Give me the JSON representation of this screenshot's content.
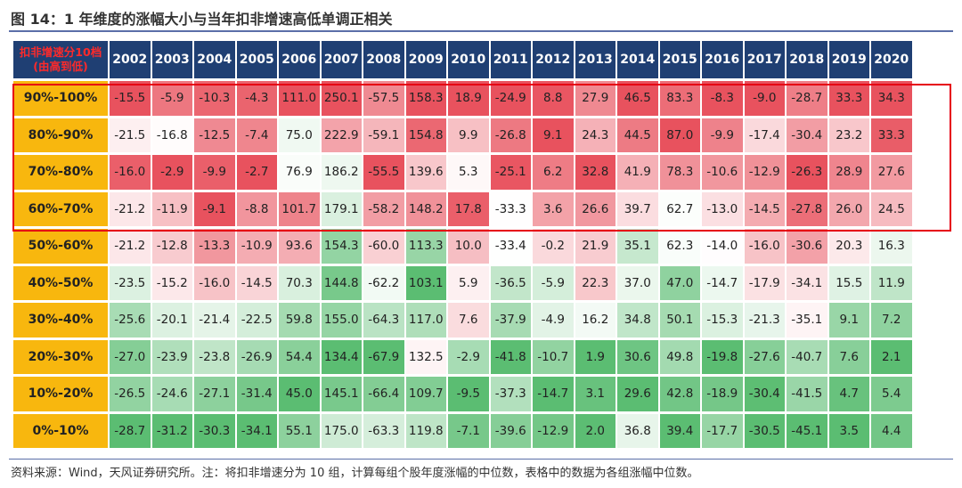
{
  "title": "图 14：1 年维度的涨幅大小与当年扣非增速高低单调正相关",
  "source": "资料来源：Wind，天风证券研究所。注：将扣非增速分为 10 组，计算每组个股年度涨幅的中位数，表格中的数据为各组涨幅中位数。",
  "header": {
    "corner_line1": "扣非增速分10档",
    "corner_line2": "(由高到低)"
  },
  "colors": {
    "header_bg": "#1f3f73",
    "corner_text": "#ff2a2a",
    "row_label_bg": "#f8b70e",
    "highlight_border": "#e60012",
    "scale_high": "#e8525e",
    "scale_mid": "#ffffff",
    "scale_low": "#5bbd72"
  },
  "chart_data": {
    "type": "heatmap",
    "title": "图 14：1 年维度的涨幅大小与当年扣非增速高低单调正相关",
    "x": [
      "2002",
      "2003",
      "2004",
      "2005",
      "2006",
      "2007",
      "2008",
      "2009",
      "2010",
      "2011",
      "2012",
      "2013",
      "2014",
      "2015",
      "2016",
      "2017",
      "2018",
      "2019",
      "2020"
    ],
    "y": [
      "90%-100%",
      "80%-90%",
      "70%-80%",
      "60%-70%",
      "50%-60%",
      "40%-50%",
      "30%-40%",
      "20%-30%",
      "10%-20%",
      "0%-10%"
    ],
    "values": [
      [
        "-15.5",
        "-5.9",
        "-10.3",
        "-4.3",
        "111.0",
        "250.1",
        "-57.5",
        "158.3",
        "18.9",
        "-24.9",
        "8.8",
        "27.9",
        "46.5",
        "83.3",
        "-8.3",
        "-9.0",
        "-28.7",
        "33.3",
        "34.3"
      ],
      [
        "-21.5",
        "-16.8",
        "-12.5",
        "-7.4",
        "75.0",
        "222.9",
        "-59.1",
        "154.8",
        "9.9",
        "-26.8",
        "9.1",
        "24.3",
        "44.5",
        "87.0",
        "-9.9",
        "-17.4",
        "-30.4",
        "23.2",
        "33.3"
      ],
      [
        "-16.0",
        "-2.9",
        "-9.9",
        "-2.7",
        "76.9",
        "186.2",
        "-55.5",
        "139.6",
        "5.3",
        "-25.1",
        "6.2",
        "32.8",
        "41.9",
        "78.3",
        "-10.6",
        "-12.9",
        "-26.3",
        "28.9",
        "27.6"
      ],
      [
        "-21.2",
        "-11.9",
        "-9.1",
        "-8.8",
        "101.7",
        "179.1",
        "-58.2",
        "148.2",
        "17.8",
        "-33.3",
        "3.6",
        "26.6",
        "39.7",
        "62.7",
        "-13.0",
        "-14.5",
        "-27.8",
        "26.0",
        "24.5"
      ],
      [
        "-21.2",
        "-12.8",
        "-13.3",
        "-10.9",
        "93.6",
        "154.3",
        "-60.0",
        "113.3",
        "10.0",
        "-33.4",
        "-0.2",
        "21.9",
        "35.1",
        "62.3",
        "-14.0",
        "-16.0",
        "-30.6",
        "20.3",
        "16.3"
      ],
      [
        "-23.5",
        "-15.2",
        "-16.0",
        "-14.5",
        "70.3",
        "144.8",
        "-62.2",
        "103.1",
        "5.9",
        "-36.5",
        "-5.9",
        "22.3",
        "37.0",
        "47.0",
        "-14.7",
        "-17.9",
        "-34.1",
        "15.5",
        "11.9"
      ],
      [
        "-25.6",
        "-20.1",
        "-21.4",
        "-22.5",
        "59.8",
        "155.0",
        "-64.3",
        "117.0",
        "7.6",
        "-37.9",
        "-4.9",
        "16.2",
        "34.8",
        "50.1",
        "-15.3",
        "-21.3",
        "-35.1",
        "9.1",
        "7.2"
      ],
      [
        "-27.0",
        "-23.9",
        "-23.8",
        "-26.9",
        "54.4",
        "134.4",
        "-67.9",
        "132.5",
        "-2.9",
        "-41.8",
        "-10.7",
        "1.9",
        "30.6",
        "49.8",
        "-19.8",
        "-27.6",
        "-40.7",
        "7.6",
        "2.1"
      ],
      [
        "-26.5",
        "-24.6",
        "-27.1",
        "-31.4",
        "45.0",
        "145.1",
        "-66.4",
        "109.7",
        "-9.5",
        "-37.3",
        "-14.7",
        "3.1",
        "29.6",
        "42.8",
        "-18.9",
        "-30.4",
        "-41.5",
        "4.7",
        "5.4"
      ],
      [
        "-28.7",
        "-31.2",
        "-30.3",
        "-34.1",
        "55.1",
        "175.0",
        "-63.3",
        "119.8",
        "-7.1",
        "-39.6",
        "-12.9",
        "2.0",
        "36.8",
        "39.4",
        "-17.7",
        "-30.5",
        "-45.1",
        "3.5",
        "4.4"
      ]
    ],
    "highlighted_rows": [
      "90%-100%",
      "80%-90%",
      "70%-80%",
      "60%-70%"
    ],
    "color_scale": "per-year column: highest red, middle white, lowest green"
  }
}
